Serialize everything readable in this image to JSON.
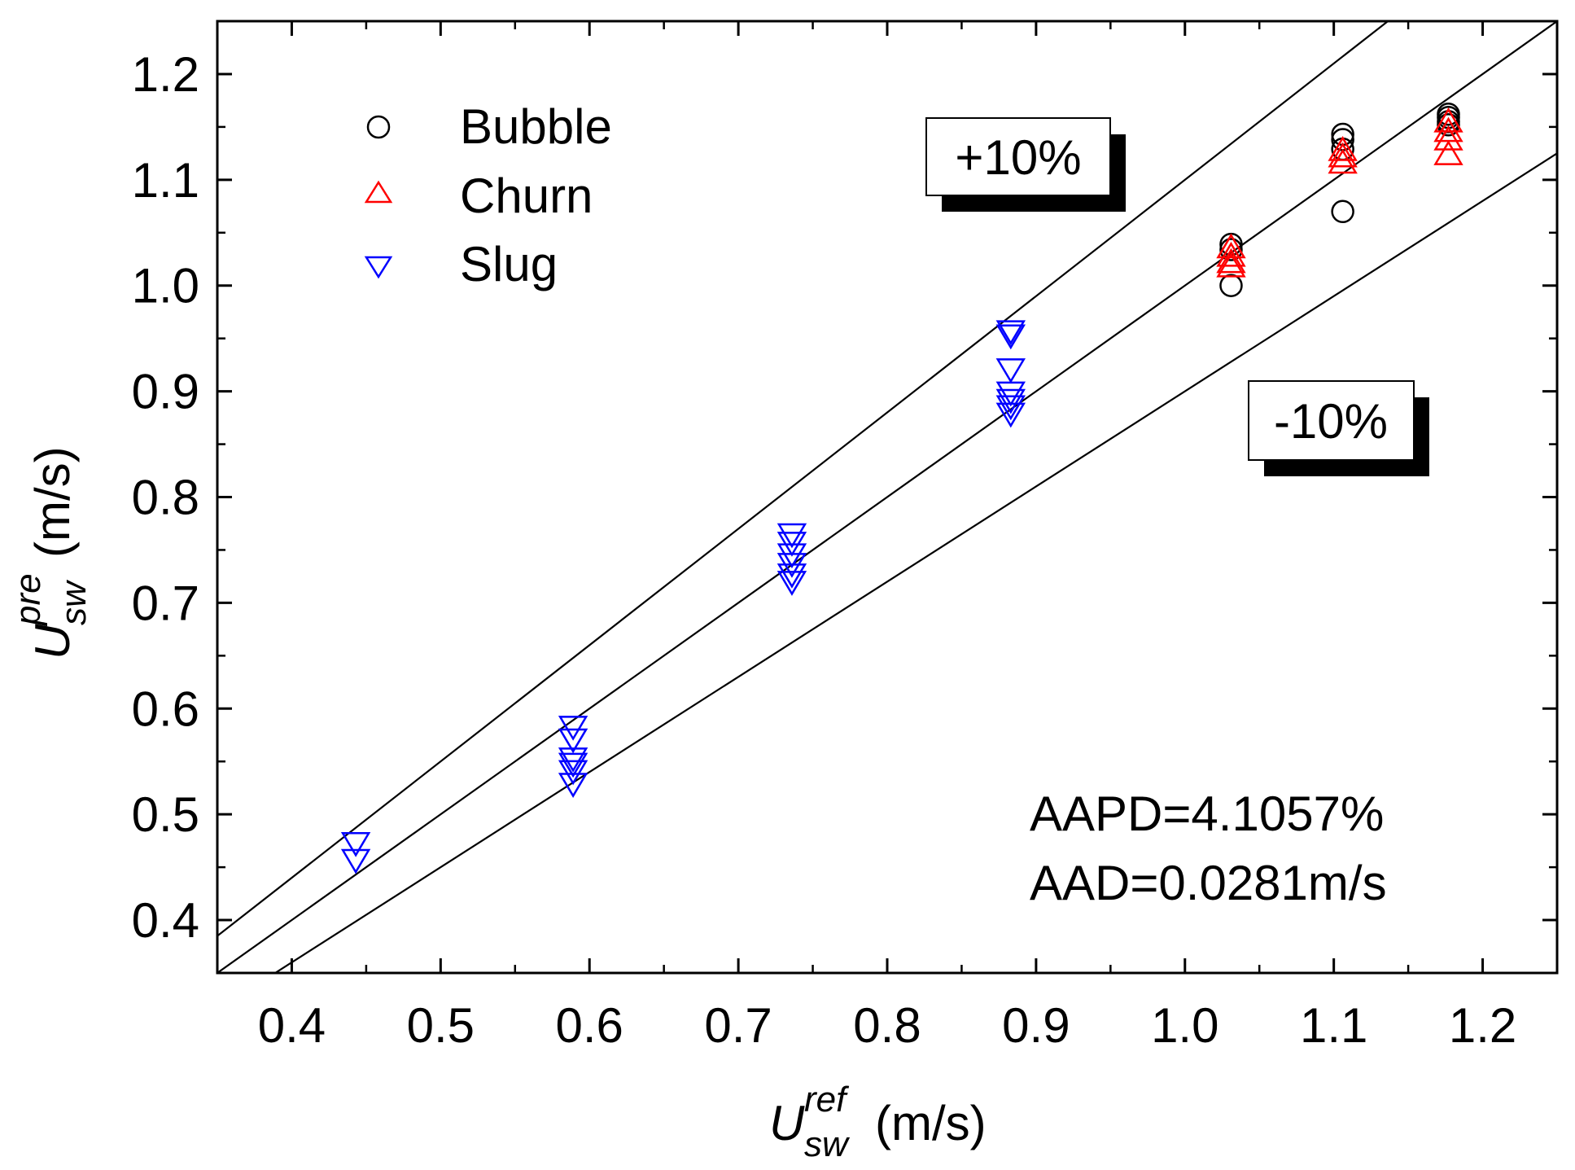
{
  "chart_data": {
    "type": "scatter",
    "xlabel": {
      "symbol": "U",
      "superscript": "ref",
      "subscript": "sw",
      "unit": "(m/s)"
    },
    "ylabel": {
      "symbol": "U",
      "superscript": "pre",
      "subscript": "sw",
      "unit": "(m/s)"
    },
    "xlim": [
      0.35,
      1.25
    ],
    "ylim": [
      0.35,
      1.25
    ],
    "x_ticks": [
      0.4,
      0.5,
      0.6,
      0.7,
      0.8,
      0.9,
      1.0,
      1.1,
      1.2
    ],
    "x_tick_labels": [
      "0.4",
      "0.5",
      "0.6",
      "0.7",
      "0.8",
      "0.9",
      "1.0",
      "1.1",
      "1.2"
    ],
    "y_ticks": [
      0.4,
      0.5,
      0.6,
      0.7,
      0.8,
      0.9,
      1.0,
      1.1,
      1.2
    ],
    "y_tick_labels": [
      "0.4",
      "0.5",
      "0.6",
      "0.7",
      "0.8",
      "0.9",
      "1.0",
      "1.1",
      "1.2"
    ],
    "grid": false,
    "legend_position": "top-left",
    "reference_lines": [
      {
        "name": "+10%",
        "slope": 1.1,
        "label": "+10%"
      },
      {
        "name": "parity",
        "slope": 1.0,
        "label": ""
      },
      {
        "name": "-10%",
        "slope": 0.9,
        "label": "-10%"
      }
    ],
    "series": [
      {
        "name": "Bubble",
        "marker": "circle",
        "color": "#000000",
        "points": [
          [
            1.031,
            1.039
          ],
          [
            1.031,
            1.034
          ],
          [
            1.031,
            1.0
          ],
          [
            1.106,
            1.143
          ],
          [
            1.106,
            1.138
          ],
          [
            1.106,
            1.129
          ],
          [
            1.106,
            1.07
          ],
          [
            1.177,
            1.162
          ],
          [
            1.177,
            1.159
          ],
          [
            1.177,
            1.155
          ],
          [
            1.177,
            1.152
          ]
        ]
      },
      {
        "name": "Churn",
        "marker": "triangle-up",
        "color": "#ff0000",
        "points": [
          [
            1.031,
            1.036
          ],
          [
            1.031,
            1.028
          ],
          [
            1.031,
            1.022
          ],
          [
            1.031,
            1.018
          ],
          [
            1.106,
            1.128
          ],
          [
            1.106,
            1.122
          ],
          [
            1.106,
            1.116
          ],
          [
            1.177,
            1.155
          ],
          [
            1.177,
            1.146
          ],
          [
            1.177,
            1.138
          ],
          [
            1.177,
            1.124
          ]
        ]
      },
      {
        "name": "Slug",
        "marker": "triangle-down",
        "color": "#0000ff",
        "points": [
          [
            0.443,
            0.473
          ],
          [
            0.443,
            0.457
          ],
          [
            0.589,
            0.583
          ],
          [
            0.589,
            0.571
          ],
          [
            0.589,
            0.553
          ],
          [
            0.589,
            0.548
          ],
          [
            0.589,
            0.541
          ],
          [
            0.589,
            0.529
          ],
          [
            0.736,
            0.765
          ],
          [
            0.736,
            0.757
          ],
          [
            0.736,
            0.746
          ],
          [
            0.736,
            0.737
          ],
          [
            0.736,
            0.727
          ],
          [
            0.736,
            0.72
          ],
          [
            0.883,
            0.957
          ],
          [
            0.883,
            0.953
          ],
          [
            0.883,
            0.921
          ],
          [
            0.883,
            0.899
          ],
          [
            0.883,
            0.892
          ],
          [
            0.883,
            0.886
          ],
          [
            0.883,
            0.879
          ]
        ]
      }
    ],
    "annotations": [
      "AAPD=4.1057%",
      "AAD=0.0281m/s"
    ]
  },
  "colors": {
    "axis": "#000000",
    "bubble": "#000000",
    "churn": "#ff0000",
    "slug": "#0000ff",
    "band_box_shadow": "#000000"
  }
}
